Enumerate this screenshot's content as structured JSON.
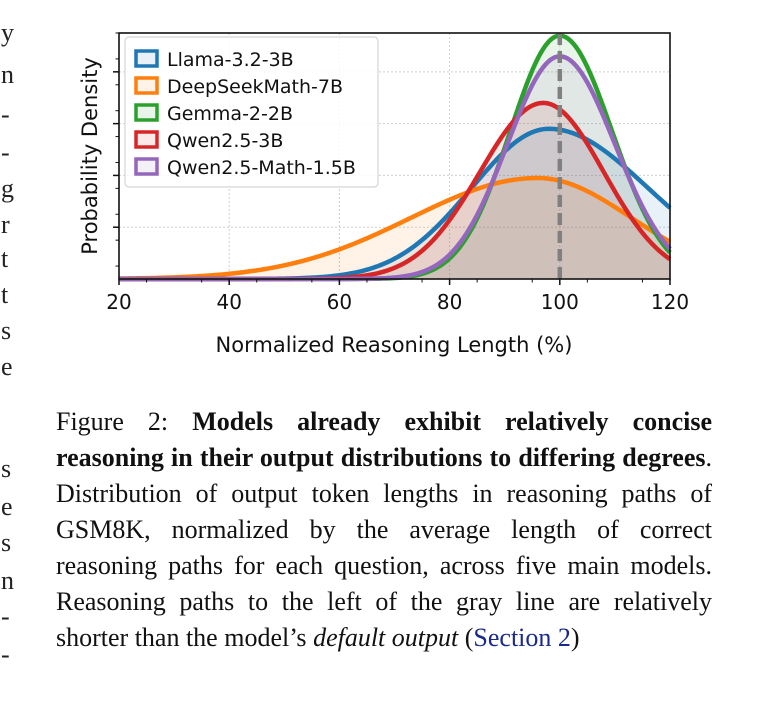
{
  "chart_data": {
    "type": "area",
    "xlabel": "Normalized Reasoning Length (%)",
    "ylabel": "Probability Density",
    "xlim": [
      20,
      120
    ],
    "ylim": [
      0,
      0.0475
    ],
    "xticks": [
      "20",
      "40",
      "60",
      "80",
      "100",
      "120"
    ],
    "grid": true,
    "legend_position": "top-left",
    "reference_line": {
      "x": 100,
      "style": "dashed",
      "color": "#808080"
    },
    "series": [
      {
        "name": "Llama-3.2-3B",
        "color": "#1f77b4",
        "peak_x": 98,
        "peak_y": 0.029,
        "sigma_left": 14,
        "sigma_right": 18
      },
      {
        "name": "DeepSeekMath-7B",
        "color": "#ff7f0e",
        "peak_x": 96,
        "peak_y": 0.0195,
        "sigma_left": 23,
        "sigma_right": 17
      },
      {
        "name": "Gemma-2-2B",
        "color": "#2ca02c",
        "peak_x": 100,
        "peak_y": 0.047,
        "sigma_left": 9,
        "sigma_right": 9.5
      },
      {
        "name": "Qwen2.5-3B",
        "color": "#d62728",
        "peak_x": 97,
        "peak_y": 0.034,
        "sigma_left": 11.5,
        "sigma_right": 11
      },
      {
        "name": "Qwen2.5-Math-1.5B",
        "color": "#9467bd",
        "peak_x": 100,
        "peak_y": 0.043,
        "sigma_left": 9.5,
        "sigma_right": 10
      }
    ]
  },
  "caption": {
    "lead": "Figure 2:",
    "bold": "Models already exhibit relatively concise reasoning in their output distributions to differing degrees",
    "text_1": ". Distribution of output token lengths in reasoning paths of GSM8K, normalized by the average length of correct reasoning paths for each question, across five main models. Reasoning paths to the left of the gray line are relatively shorter than the model’s",
    "italic": "default output",
    "text_2": "(",
    "link": "Section 2",
    "text_3": ")"
  },
  "left_fragments": [
    "y",
    "n",
    "-",
    "-",
    "g",
    "r",
    "t",
    "t",
    "s",
    "e",
    "s",
    "e",
    "s",
    "n",
    "-",
    "-"
  ]
}
